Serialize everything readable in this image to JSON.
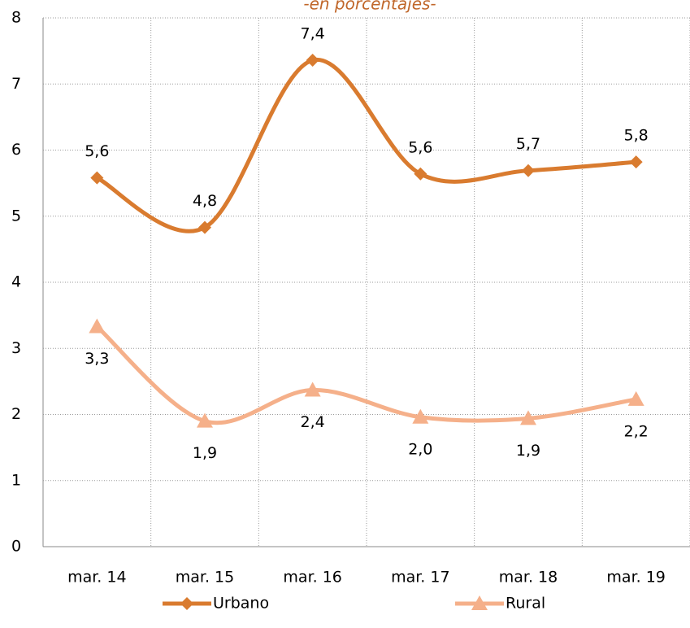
{
  "chart_data": {
    "type": "line",
    "subtitle": "-en porcentajes-",
    "categories": [
      "mar. 14",
      "mar. 15",
      "mar. 16",
      "mar. 17",
      "mar. 18",
      "mar. 19"
    ],
    "series": [
      {
        "name": "Urbano",
        "color": "#d97b2f",
        "marker": "diamond",
        "values": [
          5.58,
          4.83,
          7.36,
          5.64,
          5.69,
          5.82
        ],
        "value_labels": [
          "5,6",
          "4,8",
          "7,4",
          "5,6",
          "5,7",
          "5,8"
        ]
      },
      {
        "name": "Rural",
        "color": "#f5b08a",
        "marker": "triangle",
        "values": [
          3.33,
          1.9,
          2.37,
          1.96,
          1.94,
          2.23
        ],
        "value_labels": [
          "3,3",
          "1,9",
          "2,4",
          "2,0",
          "1,9",
          "2,2"
        ]
      }
    ],
    "ylim": [
      0,
      8
    ],
    "yticks": [
      0,
      1,
      2,
      3,
      4,
      5,
      6,
      7,
      8
    ],
    "grid": true,
    "smooth": true,
    "legend": "bottom"
  }
}
